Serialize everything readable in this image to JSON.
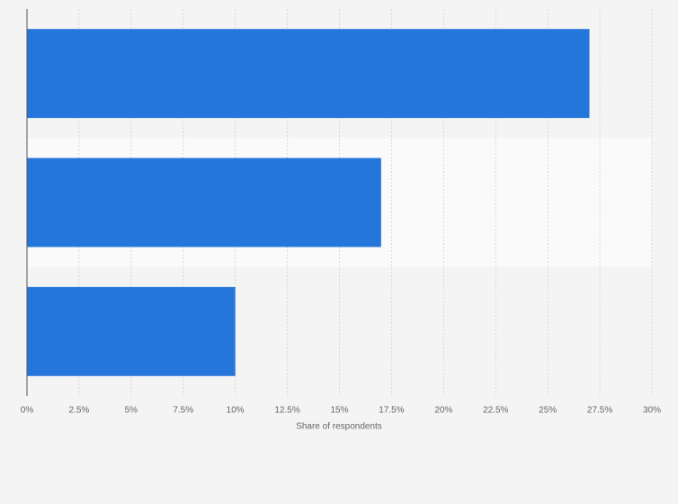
{
  "chart_data": {
    "type": "bar",
    "orientation": "horizontal",
    "categories": [
      null,
      null,
      null
    ],
    "values": [
      27,
      17,
      10
    ],
    "color": "#2576db",
    "x_label": "Share of respondents",
    "xlim": [
      0,
      30
    ],
    "xticks": [
      {
        "value": 0,
        "label": "0%"
      },
      {
        "value": 2.5,
        "label": "2.5%"
      },
      {
        "value": 5,
        "label": "5%"
      },
      {
        "value": 7.5,
        "label": "7.5%"
      },
      {
        "value": 10,
        "label": "10%"
      },
      {
        "value": 12.5,
        "label": "12.5%"
      },
      {
        "value": 15,
        "label": "15%"
      },
      {
        "value": 17.5,
        "label": "17.5%"
      },
      {
        "value": 20,
        "label": "20%"
      },
      {
        "value": 22.5,
        "label": "22.5%"
      },
      {
        "value": 25,
        "label": "25%"
      },
      {
        "value": 27.5,
        "label": "27.5%"
      },
      {
        "value": 30,
        "label": "30%"
      }
    ],
    "grid": true
  }
}
